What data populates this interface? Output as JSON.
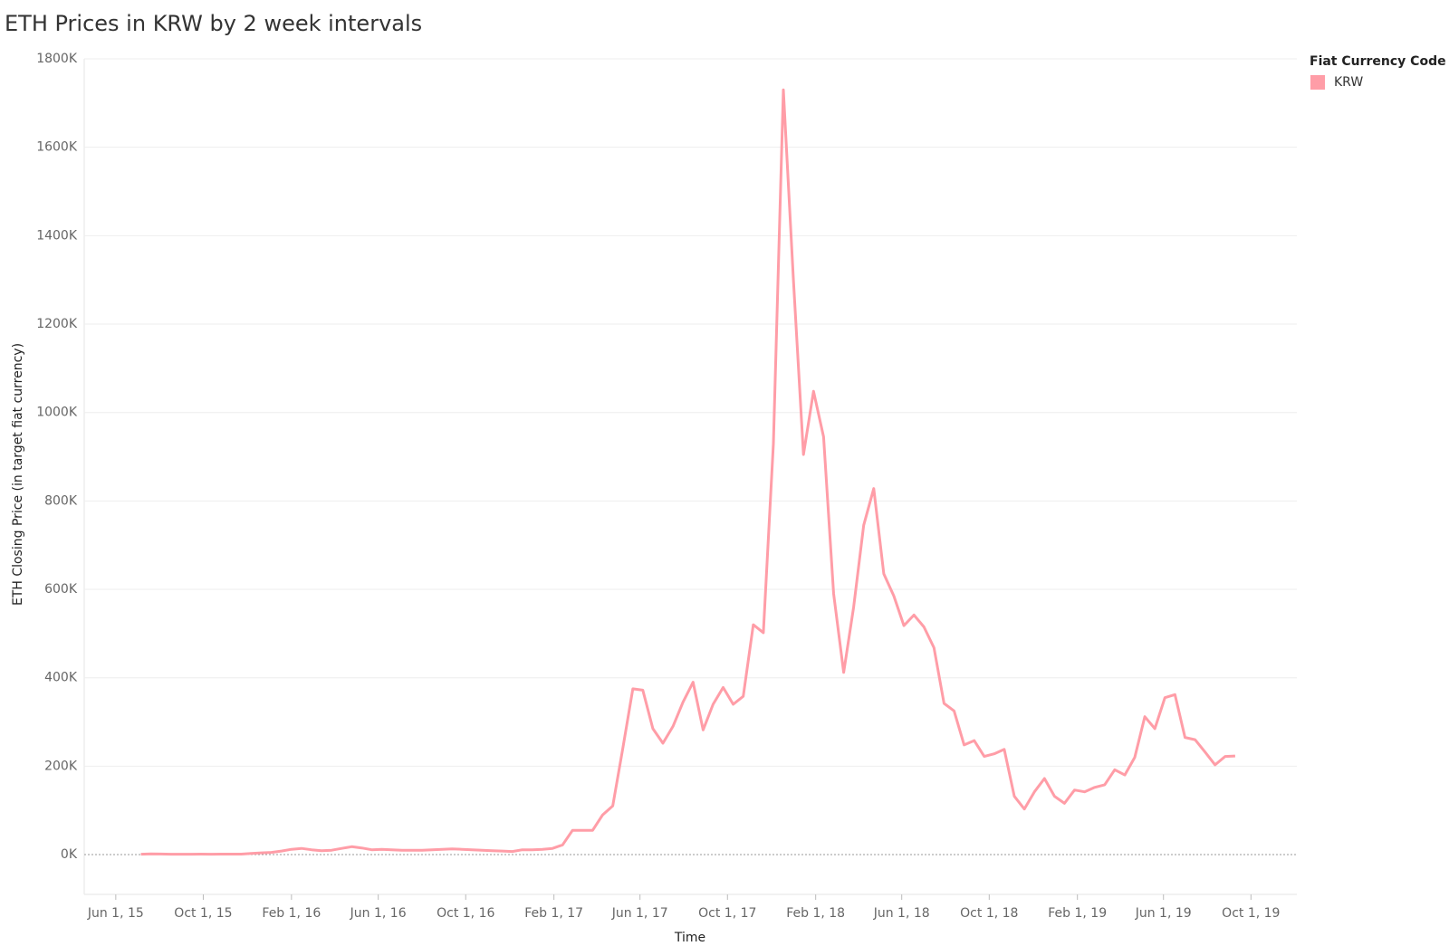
{
  "chart_data": {
    "type": "line",
    "title": "ETH Prices in KRW by 2 week intervals",
    "x_label": "Time",
    "y_label": "ETH Closing Price (in target fiat currency)",
    "legend_title": "Fiat Currency Code",
    "legend_position": "right",
    "grid": true,
    "x": [
      "2015-07-06",
      "2015-07-20",
      "2015-08-03",
      "2015-08-17",
      "2015-08-31",
      "2015-09-14",
      "2015-09-28",
      "2015-10-12",
      "2015-10-26",
      "2015-11-09",
      "2015-11-23",
      "2015-12-07",
      "2015-12-21",
      "2016-01-04",
      "2016-01-18",
      "2016-02-01",
      "2016-02-15",
      "2016-02-29",
      "2016-03-14",
      "2016-03-28",
      "2016-04-11",
      "2016-04-25",
      "2016-05-09",
      "2016-05-23",
      "2016-06-06",
      "2016-06-20",
      "2016-07-04",
      "2016-07-18",
      "2016-08-01",
      "2016-08-15",
      "2016-08-29",
      "2016-09-12",
      "2016-09-26",
      "2016-10-10",
      "2016-10-24",
      "2016-11-07",
      "2016-11-21",
      "2016-12-05",
      "2016-12-19",
      "2017-01-02",
      "2017-01-16",
      "2017-01-30",
      "2017-02-13",
      "2017-02-27",
      "2017-03-13",
      "2017-03-27",
      "2017-04-10",
      "2017-04-24",
      "2017-05-08",
      "2017-05-22",
      "2017-06-05",
      "2017-06-19",
      "2017-07-03",
      "2017-07-17",
      "2017-07-31",
      "2017-08-14",
      "2017-08-28",
      "2017-09-11",
      "2017-09-25",
      "2017-10-09",
      "2017-10-23",
      "2017-11-06",
      "2017-11-20",
      "2017-12-04",
      "2017-12-18",
      "2018-01-01",
      "2018-01-15",
      "2018-01-29",
      "2018-02-12",
      "2018-02-26",
      "2018-03-12",
      "2018-03-26",
      "2018-04-09",
      "2018-04-23",
      "2018-05-07",
      "2018-05-21",
      "2018-06-04",
      "2018-06-18",
      "2018-07-02",
      "2018-07-16",
      "2018-07-30",
      "2018-08-13",
      "2018-08-27",
      "2018-09-10",
      "2018-09-24",
      "2018-10-08",
      "2018-10-22",
      "2018-11-05",
      "2018-11-19",
      "2018-12-03",
      "2018-12-17",
      "2018-12-31",
      "2019-01-14",
      "2019-01-28",
      "2019-02-11",
      "2019-02-25",
      "2019-03-11",
      "2019-03-25",
      "2019-04-08",
      "2019-04-22",
      "2019-05-06",
      "2019-05-20",
      "2019-06-03",
      "2019-06-17",
      "2019-07-01",
      "2019-07-15",
      "2019-07-29",
      "2019-08-12",
      "2019-08-26",
      "2019-09-09"
    ],
    "series": [
      {
        "name": "KRW",
        "color": "#ff9da7",
        "values": [
          1000,
          1500,
          1300,
          1000,
          900,
          1000,
          1100,
          1000,
          1100,
          1100,
          1200,
          2500,
          4000,
          5000,
          8000,
          12000,
          14000,
          11000,
          9000,
          10000,
          14000,
          18000,
          15000,
          11000,
          12000,
          11000,
          10000,
          10000,
          10000,
          11000,
          12000,
          13000,
          12000,
          11000,
          10000,
          9000,
          8000,
          7000,
          11000,
          11000,
          12000,
          14000,
          22000,
          55000,
          55000,
          55000,
          90000,
          110000,
          240000,
          375000,
          372000,
          285000,
          252000,
          290000,
          345000,
          390000,
          282000,
          340000,
          378000,
          340000,
          358000,
          520000,
          502000,
          930000,
          1730000,
          1300000,
          905000,
          1048000,
          945000,
          590000,
          412000,
          560000,
          745000,
          828000,
          635000,
          585000,
          518000,
          542000,
          515000,
          468000,
          342000,
          325000,
          248000,
          258000,
          222000,
          228000,
          238000,
          132000,
          103000,
          142000,
          172000,
          132000,
          116000,
          146000,
          142000,
          152000,
          158000,
          192000,
          180000,
          220000,
          312000,
          285000,
          355000,
          362000,
          265000,
          260000,
          232000,
          203000,
          222000,
          223000
        ]
      }
    ],
    "xlim": [
      "2015-04-18",
      "2019-12-04"
    ],
    "xticks": [
      {
        "value": "2015-06-01",
        "label": "Jun 1, 15"
      },
      {
        "value": "2015-10-01",
        "label": "Oct 1, 15"
      },
      {
        "value": "2016-02-01",
        "label": "Feb 1, 16"
      },
      {
        "value": "2016-06-01",
        "label": "Jun 1, 16"
      },
      {
        "value": "2016-10-01",
        "label": "Oct 1, 16"
      },
      {
        "value": "2017-02-01",
        "label": "Feb 1, 17"
      },
      {
        "value": "2017-06-01",
        "label": "Jun 1, 17"
      },
      {
        "value": "2017-10-01",
        "label": "Oct 1, 17"
      },
      {
        "value": "2018-02-01",
        "label": "Feb 1, 18"
      },
      {
        "value": "2018-06-01",
        "label": "Jun 1, 18"
      },
      {
        "value": "2018-10-01",
        "label": "Oct 1, 18"
      },
      {
        "value": "2019-02-01",
        "label": "Feb 1, 19"
      },
      {
        "value": "2019-06-01",
        "label": "Jun 1, 19"
      },
      {
        "value": "2019-10-01",
        "label": "Oct 1, 19"
      }
    ],
    "ylim": [
      -90000,
      1800000
    ],
    "yticks": [
      {
        "value": 0,
        "label": "0K"
      },
      {
        "value": 200000,
        "label": "200K"
      },
      {
        "value": 400000,
        "label": "400K"
      },
      {
        "value": 600000,
        "label": "600K"
      },
      {
        "value": 800000,
        "label": "800K"
      },
      {
        "value": 1000000,
        "label": "1000K"
      },
      {
        "value": 1200000,
        "label": "1200K"
      },
      {
        "value": 1400000,
        "label": "1400K"
      },
      {
        "value": 1600000,
        "label": "1600K"
      },
      {
        "value": 1800000,
        "label": "1800K"
      }
    ]
  }
}
